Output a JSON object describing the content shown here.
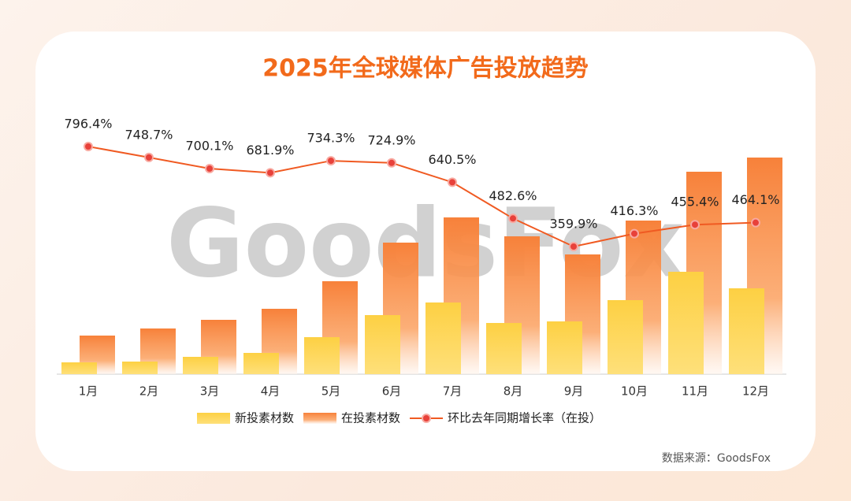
{
  "chart_data": {
    "type": "bar-line",
    "title": "2025年全球媒体广告投放趋势",
    "watermark": "GoodsFox",
    "source": "数据来源：GoodsFox",
    "categories": [
      "1月",
      "2月",
      "3月",
      "4月",
      "5月",
      "6月",
      "7月",
      "8月",
      "9月",
      "10月",
      "11月",
      "12月"
    ],
    "series": [
      {
        "name": "新投素材数",
        "type": "bar",
        "color": "#fdd043",
        "values": [
          15,
          16,
          22,
          27,
          47,
          75,
          91,
          65,
          67,
          94,
          130,
          109
        ]
      },
      {
        "name": "在投素材数",
        "type": "bar",
        "color": "#f7813a",
        "values": [
          49,
          58,
          69,
          83,
          118,
          167,
          199,
          175,
          152,
          195,
          257,
          275
        ]
      },
      {
        "name": "环比去年同期增长率（在投）",
        "type": "line",
        "axis": "y2",
        "color": "#f05a22",
        "values": [
          796.4,
          748.7,
          700.1,
          681.9,
          734.3,
          724.9,
          640.5,
          482.6,
          359.9,
          416.3,
          455.4,
          464.1
        ],
        "value_labels": [
          "796.4%",
          "748.7%",
          "700.1%",
          "681.9%",
          "734.3%",
          "724.9%",
          "640.5%",
          "482.6%",
          "359.9%",
          "416.3%",
          "455.4%",
          "464.1%"
        ]
      }
    ]
  }
}
